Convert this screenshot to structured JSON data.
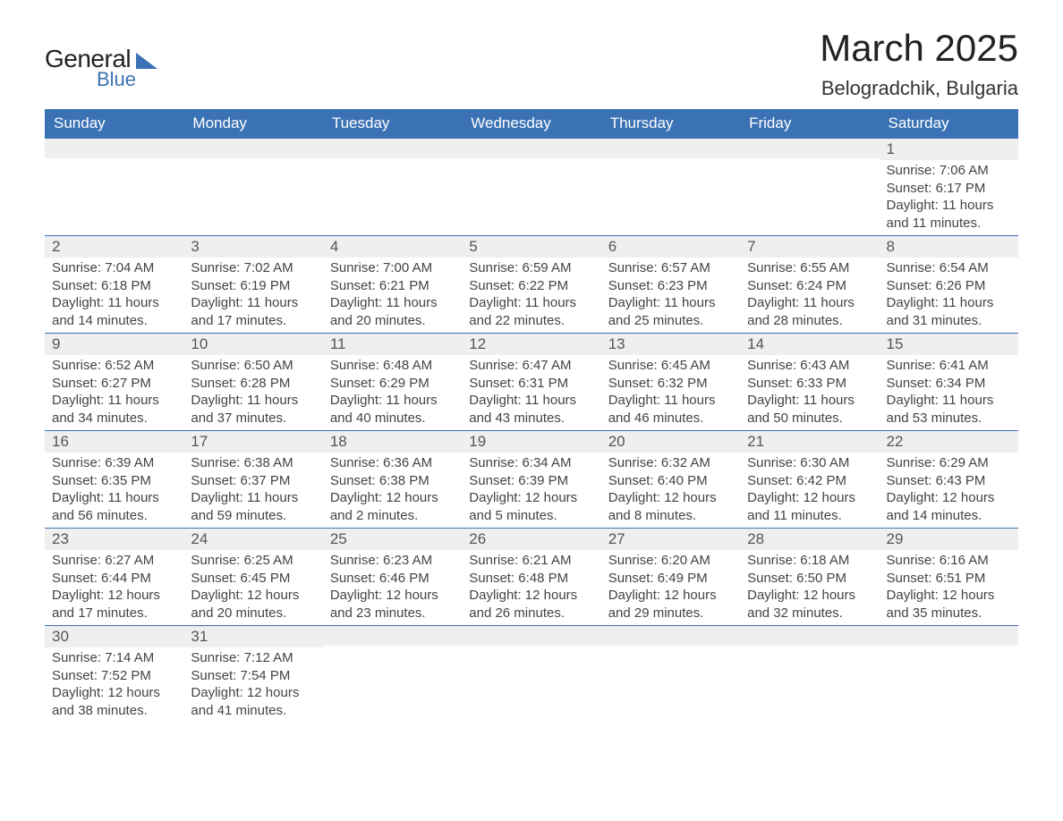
{
  "logo": {
    "text_general": "General",
    "text_blue": "Blue"
  },
  "header": {
    "month_title": "March 2025",
    "location": "Belogradchik, Bulgaria"
  },
  "colors": {
    "header_bg": "#3b72b5",
    "header_text": "#ffffff",
    "daynum_bg": "#efefef",
    "body_text": "#444444",
    "border": "#3b72b5",
    "page_bg": "#ffffff"
  },
  "typography": {
    "month_title_fontsize": 42,
    "location_fontsize": 22,
    "weekday_fontsize": 17,
    "daynum_fontsize": 17,
    "cell_fontsize": 15,
    "font_family": "Arial"
  },
  "calendar": {
    "type": "table",
    "weekdays": [
      "Sunday",
      "Monday",
      "Tuesday",
      "Wednesday",
      "Thursday",
      "Friday",
      "Saturday"
    ],
    "weeks": [
      [
        null,
        null,
        null,
        null,
        null,
        null,
        {
          "day": "1",
          "sunrise": "Sunrise: 7:06 AM",
          "sunset": "Sunset: 6:17 PM",
          "daylight": "Daylight: 11 hours and 11 minutes."
        }
      ],
      [
        {
          "day": "2",
          "sunrise": "Sunrise: 7:04 AM",
          "sunset": "Sunset: 6:18 PM",
          "daylight": "Daylight: 11 hours and 14 minutes."
        },
        {
          "day": "3",
          "sunrise": "Sunrise: 7:02 AM",
          "sunset": "Sunset: 6:19 PM",
          "daylight": "Daylight: 11 hours and 17 minutes."
        },
        {
          "day": "4",
          "sunrise": "Sunrise: 7:00 AM",
          "sunset": "Sunset: 6:21 PM",
          "daylight": "Daylight: 11 hours and 20 minutes."
        },
        {
          "day": "5",
          "sunrise": "Sunrise: 6:59 AM",
          "sunset": "Sunset: 6:22 PM",
          "daylight": "Daylight: 11 hours and 22 minutes."
        },
        {
          "day": "6",
          "sunrise": "Sunrise: 6:57 AM",
          "sunset": "Sunset: 6:23 PM",
          "daylight": "Daylight: 11 hours and 25 minutes."
        },
        {
          "day": "7",
          "sunrise": "Sunrise: 6:55 AM",
          "sunset": "Sunset: 6:24 PM",
          "daylight": "Daylight: 11 hours and 28 minutes."
        },
        {
          "day": "8",
          "sunrise": "Sunrise: 6:54 AM",
          "sunset": "Sunset: 6:26 PM",
          "daylight": "Daylight: 11 hours and 31 minutes."
        }
      ],
      [
        {
          "day": "9",
          "sunrise": "Sunrise: 6:52 AM",
          "sunset": "Sunset: 6:27 PM",
          "daylight": "Daylight: 11 hours and 34 minutes."
        },
        {
          "day": "10",
          "sunrise": "Sunrise: 6:50 AM",
          "sunset": "Sunset: 6:28 PM",
          "daylight": "Daylight: 11 hours and 37 minutes."
        },
        {
          "day": "11",
          "sunrise": "Sunrise: 6:48 AM",
          "sunset": "Sunset: 6:29 PM",
          "daylight": "Daylight: 11 hours and 40 minutes."
        },
        {
          "day": "12",
          "sunrise": "Sunrise: 6:47 AM",
          "sunset": "Sunset: 6:31 PM",
          "daylight": "Daylight: 11 hours and 43 minutes."
        },
        {
          "day": "13",
          "sunrise": "Sunrise: 6:45 AM",
          "sunset": "Sunset: 6:32 PM",
          "daylight": "Daylight: 11 hours and 46 minutes."
        },
        {
          "day": "14",
          "sunrise": "Sunrise: 6:43 AM",
          "sunset": "Sunset: 6:33 PM",
          "daylight": "Daylight: 11 hours and 50 minutes."
        },
        {
          "day": "15",
          "sunrise": "Sunrise: 6:41 AM",
          "sunset": "Sunset: 6:34 PM",
          "daylight": "Daylight: 11 hours and 53 minutes."
        }
      ],
      [
        {
          "day": "16",
          "sunrise": "Sunrise: 6:39 AM",
          "sunset": "Sunset: 6:35 PM",
          "daylight": "Daylight: 11 hours and 56 minutes."
        },
        {
          "day": "17",
          "sunrise": "Sunrise: 6:38 AM",
          "sunset": "Sunset: 6:37 PM",
          "daylight": "Daylight: 11 hours and 59 minutes."
        },
        {
          "day": "18",
          "sunrise": "Sunrise: 6:36 AM",
          "sunset": "Sunset: 6:38 PM",
          "daylight": "Daylight: 12 hours and 2 minutes."
        },
        {
          "day": "19",
          "sunrise": "Sunrise: 6:34 AM",
          "sunset": "Sunset: 6:39 PM",
          "daylight": "Daylight: 12 hours and 5 minutes."
        },
        {
          "day": "20",
          "sunrise": "Sunrise: 6:32 AM",
          "sunset": "Sunset: 6:40 PM",
          "daylight": "Daylight: 12 hours and 8 minutes."
        },
        {
          "day": "21",
          "sunrise": "Sunrise: 6:30 AM",
          "sunset": "Sunset: 6:42 PM",
          "daylight": "Daylight: 12 hours and 11 minutes."
        },
        {
          "day": "22",
          "sunrise": "Sunrise: 6:29 AM",
          "sunset": "Sunset: 6:43 PM",
          "daylight": "Daylight: 12 hours and 14 minutes."
        }
      ],
      [
        {
          "day": "23",
          "sunrise": "Sunrise: 6:27 AM",
          "sunset": "Sunset: 6:44 PM",
          "daylight": "Daylight: 12 hours and 17 minutes."
        },
        {
          "day": "24",
          "sunrise": "Sunrise: 6:25 AM",
          "sunset": "Sunset: 6:45 PM",
          "daylight": "Daylight: 12 hours and 20 minutes."
        },
        {
          "day": "25",
          "sunrise": "Sunrise: 6:23 AM",
          "sunset": "Sunset: 6:46 PM",
          "daylight": "Daylight: 12 hours and 23 minutes."
        },
        {
          "day": "26",
          "sunrise": "Sunrise: 6:21 AM",
          "sunset": "Sunset: 6:48 PM",
          "daylight": "Daylight: 12 hours and 26 minutes."
        },
        {
          "day": "27",
          "sunrise": "Sunrise: 6:20 AM",
          "sunset": "Sunset: 6:49 PM",
          "daylight": "Daylight: 12 hours and 29 minutes."
        },
        {
          "day": "28",
          "sunrise": "Sunrise: 6:18 AM",
          "sunset": "Sunset: 6:50 PM",
          "daylight": "Daylight: 12 hours and 32 minutes."
        },
        {
          "day": "29",
          "sunrise": "Sunrise: 6:16 AM",
          "sunset": "Sunset: 6:51 PM",
          "daylight": "Daylight: 12 hours and 35 minutes."
        }
      ],
      [
        {
          "day": "30",
          "sunrise": "Sunrise: 7:14 AM",
          "sunset": "Sunset: 7:52 PM",
          "daylight": "Daylight: 12 hours and 38 minutes."
        },
        {
          "day": "31",
          "sunrise": "Sunrise: 7:12 AM",
          "sunset": "Sunset: 7:54 PM",
          "daylight": "Daylight: 12 hours and 41 minutes."
        },
        null,
        null,
        null,
        null,
        null
      ]
    ]
  }
}
